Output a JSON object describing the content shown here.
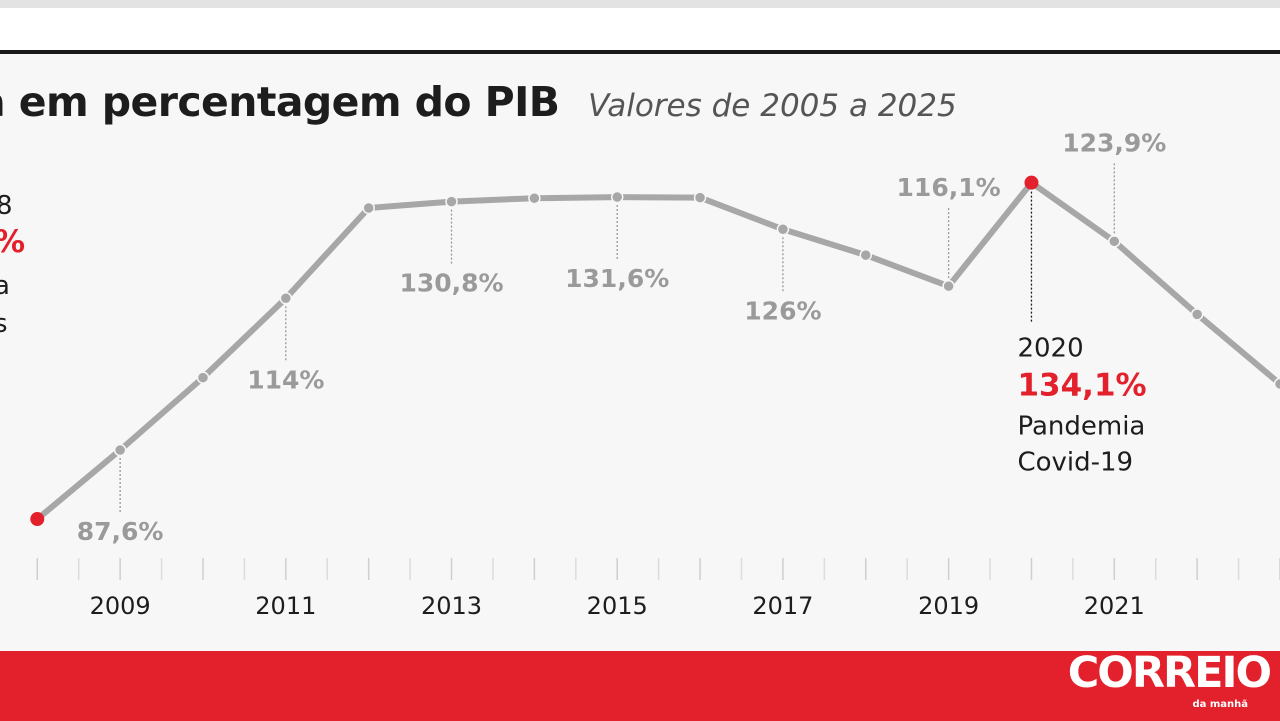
{
  "title": "a em percentagem do PIB",
  "subtitle": "Valores de 2005 a 2025",
  "brand": {
    "name": "CORREIO",
    "tagline": "da manhã"
  },
  "partial_annotation": {
    "year": "8",
    "value": "%",
    "line1": "a",
    "line2": "s"
  },
  "chart_data": {
    "type": "line",
    "title": "a em percentagem do PIB",
    "subtitle": "Valores de 2005 a 2025",
    "x": [
      2008,
      2009,
      2010,
      2011,
      2012,
      2013,
      2014,
      2015,
      2016,
      2017,
      2018,
      2019,
      2020,
      2021,
      2022,
      2023
    ],
    "values": [
      75.6,
      87.6,
      100.2,
      114,
      129.7,
      130.8,
      131.4,
      131.6,
      131.5,
      126,
      121.5,
      116.1,
      134.1,
      123.9,
      111.2,
      99.1
    ],
    "xlim": [
      2007.55,
      2023
    ],
    "ylim": [
      65,
      145
    ],
    "tick_years": [
      2009,
      2011,
      2013,
      2015,
      2017,
      2019,
      2021
    ],
    "tick_labels": [
      "2009",
      "2011",
      "2013",
      "2015",
      "2017",
      "2019",
      "2021"
    ],
    "labels": [
      {
        "x": 2009,
        "text": "87,6%",
        "pos": "below",
        "color": "#9a9a9a"
      },
      {
        "x": 2011,
        "text": "114%",
        "pos": "below",
        "color": "#9a9a9a"
      },
      {
        "x": 2013,
        "text": "130,8%",
        "pos": "below",
        "color": "#9a9a9a"
      },
      {
        "x": 2015,
        "text": "131,6%",
        "pos": "below",
        "color": "#9a9a9a"
      },
      {
        "x": 2017,
        "text": "126%",
        "pos": "below",
        "color": "#9a9a9a"
      },
      {
        "x": 2019,
        "text": "116,1%",
        "pos": "above",
        "color": "#9a9a9a"
      },
      {
        "x": 2021,
        "text": "123,9%",
        "pos": "above",
        "color": "#9a9a9a"
      }
    ],
    "highlights": [
      {
        "x": 2008,
        "color": "#e2212c"
      },
      {
        "x": 2020,
        "color": "#e2212c"
      }
    ],
    "callout": {
      "x": 2020,
      "year": "2020",
      "value": "134,1%",
      "line1": "Pandemia",
      "line2": "Covid-19"
    },
    "colors": {
      "line": "#a7a7a7",
      "label": "#9a9a9a",
      "accent": "#e2212c",
      "text": "#1d1d1d"
    }
  }
}
